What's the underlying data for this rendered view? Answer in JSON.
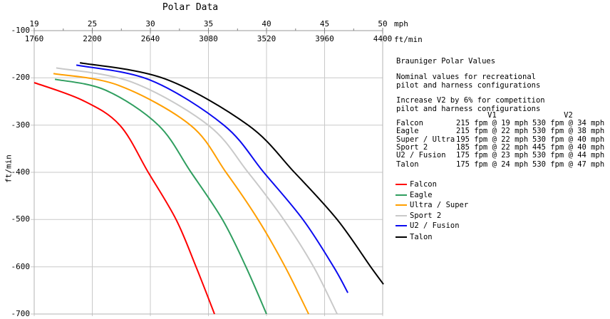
{
  "title": "Polar Data",
  "axes": {
    "top_mph": {
      "unit": "mph",
      "ticks": [
        "19",
        "25",
        "30",
        "35",
        "40",
        "45",
        "50"
      ]
    },
    "top_ftmin": {
      "unit": "ft/min",
      "ticks": [
        "1760",
        "2200",
        "2640",
        "3080",
        "3520",
        "3960",
        "4400"
      ]
    },
    "y": {
      "unit": "ft/min",
      "ticks": [
        "-100",
        "-200",
        "-300",
        "-400",
        "-500",
        "-600",
        "-700"
      ]
    }
  },
  "annotation": {
    "heading": "Brauniger Polar Values",
    "para1_line1": "Nominal values for recreational",
    "para1_line2": "pilot and harness configurations",
    "para2_line1": "Increase V2 by 6% for competition",
    "para2_line2": "pilot and harness configurations",
    "table": {
      "col1_header": "V1",
      "col2_header": "V2",
      "rows": [
        {
          "name": "Falcon",
          "v1": "215 fpm @ 19 mph",
          "v2": "530 fpm @ 34 mph"
        },
        {
          "name": "Eagle",
          "v1": "215 fpm @ 22 mph",
          "v2": "530 fpm @ 38 mph"
        },
        {
          "name": "Super / Ultra",
          "v1": "195 fpm @ 22 mph",
          "v2": "530 fpm @ 40 mph"
        },
        {
          "name": "Sport 2",
          "v1": "185 fpm @ 22 mph",
          "v2": "445 fpm @ 40 mph"
        },
        {
          "name": "U2 / Fusion",
          "v1": "175 fpm @ 23 mph",
          "v2": "530 fpm @ 44 mph"
        },
        {
          "name": "Talon",
          "v1": "175 fpm @ 24 mph",
          "v2": "530 fpm @ 47 mph"
        }
      ]
    }
  },
  "legend": [
    {
      "label": "Falcon",
      "color": "#ff0000"
    },
    {
      "label": "Eagle",
      "color": "#2f9e5f"
    },
    {
      "label": "Ultra / Super",
      "color": "#ff9f00"
    },
    {
      "label": "Sport 2",
      "color": "#c9c9c9"
    },
    {
      "label": "U2 / Fusion",
      "color": "#0b0bf0"
    },
    {
      "label": "Talon",
      "color": "#000000"
    }
  ],
  "chart_data": {
    "type": "line",
    "title": "Polar Data",
    "x_units": "horizontal speed, ft/min (mph axis: mph = ft/min / 88)",
    "y_units": "sink rate, ft/min",
    "x_range": [
      1760,
      4400
    ],
    "y_range": [
      -100,
      -700
    ],
    "x_ticks_ftmin": [
      1760,
      2200,
      2640,
      3080,
      3520,
      3960,
      4400
    ],
    "x_ticks_mph": [
      19,
      25,
      30,
      35,
      40,
      45,
      50
    ],
    "y_ticks": [
      -100,
      -200,
      -300,
      -400,
      -500,
      -600,
      -700
    ],
    "grid": true,
    "legend_position": "right",
    "series": [
      {
        "name": "Falcon",
        "color": "#ff0000",
        "points": [
          [
            1760,
            -210
          ],
          [
            2130,
            -248
          ],
          [
            2408,
            -300
          ],
          [
            2624,
            -400
          ],
          [
            2835,
            -500
          ],
          [
            2986,
            -600
          ],
          [
            3126,
            -700
          ]
        ]
      },
      {
        "name": "Eagle",
        "color": "#2f9e5f",
        "points": [
          [
            1917,
            -203
          ],
          [
            2300,
            -226
          ],
          [
            2700,
            -300
          ],
          [
            2948,
            -400
          ],
          [
            3186,
            -500
          ],
          [
            3364,
            -600
          ],
          [
            3520,
            -700
          ]
        ]
      },
      {
        "name": "Ultra / Super",
        "color": "#ff9f00",
        "points": [
          [
            1906,
            -191
          ],
          [
            2400,
            -216
          ],
          [
            2943,
            -300
          ],
          [
            3213,
            -400
          ],
          [
            3456,
            -500
          ],
          [
            3661,
            -600
          ],
          [
            3839,
            -700
          ]
        ]
      },
      {
        "name": "Sport 2",
        "color": "#c9c9c9",
        "points": [
          [
            1927,
            -179
          ],
          [
            2500,
            -209
          ],
          [
            3078,
            -300
          ],
          [
            3380,
            -400
          ],
          [
            3650,
            -500
          ],
          [
            3877,
            -600
          ],
          [
            4055,
            -700
          ]
        ]
      },
      {
        "name": "U2 / Fusion",
        "color": "#0b0bf0",
        "points": [
          [
            2079,
            -173
          ],
          [
            2640,
            -205
          ],
          [
            3196,
            -300
          ],
          [
            3499,
            -400
          ],
          [
            3796,
            -500
          ],
          [
            4028,
            -600
          ],
          [
            4136,
            -655
          ]
        ]
      },
      {
        "name": "Talon",
        "color": "#000000",
        "points": [
          [
            2106,
            -168
          ],
          [
            2750,
            -202
          ],
          [
            3380,
            -300
          ],
          [
            3731,
            -400
          ],
          [
            4055,
            -500
          ],
          [
            4309,
            -600
          ],
          [
            4406,
            -637
          ]
        ]
      }
    ]
  }
}
